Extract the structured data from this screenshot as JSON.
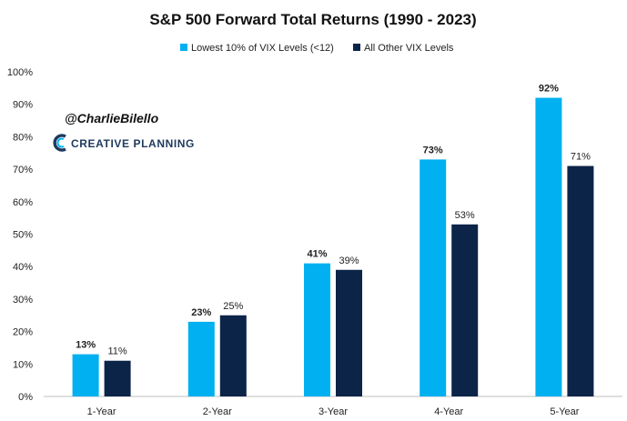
{
  "chart_data": {
    "type": "bar",
    "title": "S&P 500 Forward Total Returns (1990 - 2023)",
    "categories": [
      "1-Year",
      "2-Year",
      "3-Year",
      "4-Year",
      "5-Year"
    ],
    "series": [
      {
        "name": "Lowest 10% of VIX Levels (<12)",
        "color": "#00b0f0",
        "values": [
          13,
          23,
          41,
          73,
          92
        ],
        "labels": [
          "13%",
          "23%",
          "41%",
          "73%",
          "92%"
        ]
      },
      {
        "name": "All Other VIX Levels",
        "color": "#0d2449",
        "values": [
          11,
          25,
          39,
          53,
          71
        ],
        "labels": [
          "11%",
          "25%",
          "39%",
          "53%",
          "71%"
        ]
      }
    ],
    "ylim": [
      0,
      100
    ],
    "yticks": [
      "0%",
      "10%",
      "20%",
      "30%",
      "40%",
      "50%",
      "60%",
      "70%",
      "80%",
      "90%",
      "100%"
    ],
    "grid": false,
    "legend": "top-center",
    "xlabel": "",
    "ylabel": ""
  },
  "watermark": {
    "handle": "@CharlieBilello",
    "brand": "CREATIVE PLANNING",
    "brand_color": "#1f3a5c",
    "logo_accent": "#00b0f0"
  }
}
